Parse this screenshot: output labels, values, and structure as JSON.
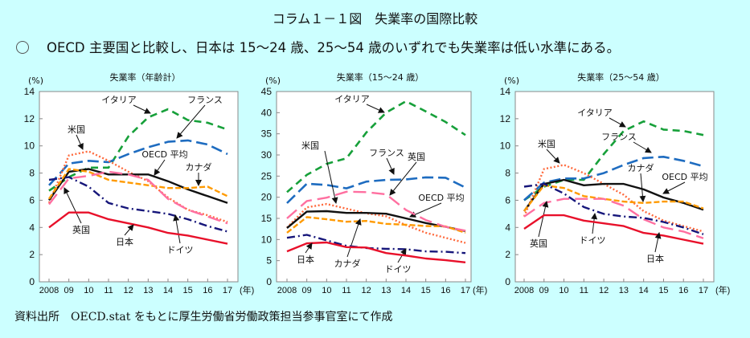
{
  "title": "コラム１－１図　失業率の国際比較",
  "subtitle": "OECD 主要国と比較し、日本は 15～24 歳、25～54 歳のいずれでも失業率は低い水準にある。",
  "source": "資料出所　OECD.stat をもとに厚生労働省労働政策担当参事官室にて作成",
  "colors": {
    "background": "#ccffff",
    "イタリア": "#17a03a",
    "フランス": "#1e6cc0",
    "米国": "#ff6a3d",
    "OECD 平均": "#111111",
    "カナダ": "#ff9a00",
    "英国": "#ff6fa0",
    "ドイツ": "#16167a",
    "日本": "#e8102a"
  },
  "chart_data": [
    {
      "type": "line",
      "title": "失業率（年齢計）",
      "ylabel": "(%)",
      "xlabel": "(年)",
      "categories": [
        "2008",
        "09",
        "10",
        "11",
        "12",
        "13",
        "14",
        "15",
        "16",
        "17"
      ],
      "ylim": [
        0,
        14
      ],
      "yticks": [
        0,
        2,
        4,
        6,
        8,
        10,
        12,
        14
      ],
      "grid": false,
      "series": [
        {
          "name": "イタリア",
          "values": [
            6.7,
            7.7,
            8.4,
            8.4,
            10.7,
            12.1,
            12.7,
            11.9,
            11.7,
            11.2
          ]
        },
        {
          "name": "フランス",
          "values": [
            7.1,
            8.7,
            8.9,
            8.8,
            9.4,
            9.9,
            10.3,
            10.4,
            10.1,
            9.4
          ]
        },
        {
          "name": "米国",
          "values": [
            5.8,
            9.3,
            9.6,
            8.9,
            8.1,
            7.4,
            6.2,
            5.3,
            4.9,
            4.4
          ]
        },
        {
          "name": "OECD 平均",
          "values": [
            6.0,
            8.1,
            8.3,
            7.9,
            7.9,
            7.9,
            7.4,
            6.8,
            6.3,
            5.8
          ]
        },
        {
          "name": "カナダ",
          "values": [
            6.1,
            8.3,
            8.1,
            7.5,
            7.3,
            7.1,
            6.9,
            6.9,
            7.0,
            6.3
          ]
        },
        {
          "name": "英国",
          "values": [
            5.7,
            7.6,
            7.8,
            8.1,
            7.9,
            7.5,
            6.1,
            5.3,
            4.8,
            4.3
          ]
        },
        {
          "name": "ドイツ",
          "values": [
            7.5,
            7.7,
            7.0,
            5.8,
            5.4,
            5.2,
            5.0,
            4.6,
            4.1,
            3.7
          ]
        },
        {
          "name": "日本",
          "values": [
            4.0,
            5.1,
            5.1,
            4.6,
            4.3,
            4.0,
            3.6,
            3.4,
            3.1,
            2.8
          ]
        }
      ]
    },
    {
      "type": "line",
      "title": "失業率（15～24 歳）",
      "ylabel": "(%)",
      "xlabel": "(年)",
      "categories": [
        "2008",
        "09",
        "10",
        "11",
        "12",
        "13",
        "14",
        "15",
        "16",
        "17"
      ],
      "ylim": [
        0,
        45
      ],
      "yticks": [
        0,
        5,
        10,
        15,
        20,
        25,
        30,
        35,
        40,
        45
      ],
      "grid": false,
      "series": [
        {
          "name": "イタリア",
          "values": [
            21.2,
            25.3,
            27.9,
            29.2,
            35.3,
            40.0,
            42.7,
            40.3,
            37.8,
            34.7
          ]
        },
        {
          "name": "フランス",
          "values": [
            18.6,
            23.2,
            22.9,
            22.1,
            23.7,
            24.1,
            24.2,
            24.7,
            24.6,
            22.3
          ]
        },
        {
          "name": "米国",
          "values": [
            12.8,
            17.6,
            18.4,
            17.3,
            16.2,
            15.5,
            13.4,
            11.6,
            10.4,
            9.2
          ]
        },
        {
          "name": "OECD 平均",
          "values": [
            12.7,
            16.6,
            16.7,
            16.3,
            16.3,
            16.1,
            15.0,
            13.9,
            13.0,
            12.0
          ]
        },
        {
          "name": "カナダ",
          "values": [
            11.6,
            15.3,
            14.8,
            14.2,
            14.4,
            13.7,
            13.5,
            13.2,
            13.1,
            11.6
          ]
        },
        {
          "name": "英国",
          "values": [
            15.0,
            19.1,
            19.9,
            21.3,
            21.2,
            20.7,
            17.0,
            14.6,
            13.0,
            12.1
          ]
        },
        {
          "name": "ドイツ",
          "values": [
            10.4,
            11.1,
            9.8,
            8.5,
            8.0,
            7.8,
            7.7,
            7.2,
            7.1,
            6.8
          ]
        },
        {
          "name": "日本",
          "values": [
            7.2,
            9.1,
            9.3,
            8.2,
            8.1,
            6.8,
            6.2,
            5.5,
            5.1,
            4.6
          ]
        }
      ]
    },
    {
      "type": "line",
      "title": "失業率（25～54 歳）",
      "ylabel": "(%)",
      "xlabel": "(年)",
      "categories": [
        "2008",
        "09",
        "10",
        "11",
        "12",
        "13",
        "14",
        "15",
        "16",
        "17"
      ],
      "ylim": [
        0,
        14
      ],
      "yticks": [
        0,
        2,
        4,
        6,
        8,
        10,
        12,
        14
      ],
      "grid": false,
      "series": [
        {
          "name": "イタリア",
          "values": [
            6.0,
            7.0,
            7.5,
            7.5,
            9.4,
            11.1,
            11.8,
            11.2,
            11.1,
            10.8
          ]
        },
        {
          "name": "フランス",
          "values": [
            6.0,
            7.3,
            7.6,
            7.6,
            8.0,
            8.6,
            9.1,
            9.2,
            8.9,
            8.5
          ]
        },
        {
          "name": "米国",
          "values": [
            4.8,
            8.3,
            8.6,
            8.0,
            7.2,
            6.4,
            5.2,
            4.5,
            4.1,
            3.7
          ]
        },
        {
          "name": "OECD 平均",
          "values": [
            5.2,
            7.2,
            7.5,
            7.1,
            7.2,
            7.2,
            6.8,
            6.2,
            5.8,
            5.3
          ]
        },
        {
          "name": "カナダ",
          "values": [
            5.2,
            7.1,
            6.9,
            6.3,
            6.1,
            5.9,
            5.8,
            5.9,
            5.9,
            5.4
          ]
        },
        {
          "name": "英国",
          "values": [
            4.8,
            5.8,
            6.1,
            6.1,
            6.1,
            5.6,
            4.6,
            4.0,
            3.7,
            3.2
          ]
        },
        {
          "name": "ドイツ",
          "values": [
            7.0,
            7.2,
            6.5,
            5.5,
            5.0,
            4.8,
            4.7,
            4.4,
            4.0,
            3.5
          ]
        },
        {
          "name": "日本",
          "values": [
            3.9,
            4.9,
            4.9,
            4.5,
            4.3,
            4.1,
            3.6,
            3.4,
            3.1,
            2.8
          ]
        }
      ]
    }
  ]
}
